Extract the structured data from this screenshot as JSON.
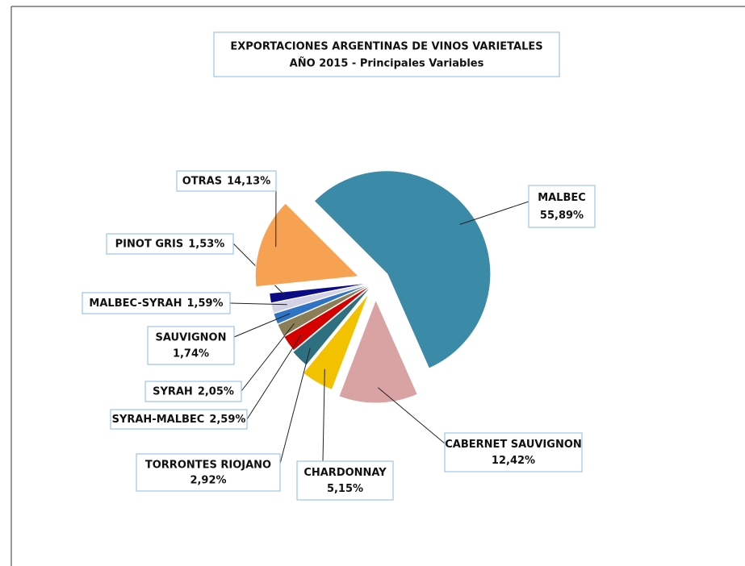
{
  "chart_data": {
    "type": "pie",
    "title": "EXPORTACIONES ARGENTINAS DE VINOS VARIETALES",
    "subtitle": "AÑO 2015 - Principales Variables",
    "categories": [
      "MALBEC",
      "CABERNET SAUVIGNON",
      "CHARDONNAY",
      "TORRONTES RIOJANO",
      "SYRAH-MALBEC",
      "SYRAH",
      "SAUVIGNON",
      "MALBEC-SYRAH",
      "PINOT GRIS",
      "OTRAS"
    ],
    "values": [
      55.89,
      12.42,
      5.15,
      2.92,
      2.59,
      2.05,
      1.74,
      1.59,
      1.53,
      14.13
    ],
    "value_labels": [
      "55,89%",
      "12,42%",
      "5,15%",
      "2,92%",
      "2,59%",
      "2,05%",
      "1,74%",
      "1,59%",
      "1,53%",
      "14,13%"
    ],
    "colors": [
      "#3a8aa8",
      "#d9a3a3",
      "#f2c200",
      "#2e6f80",
      "#d40000",
      "#8b7d55",
      "#2f74c4",
      "#d2d2e4",
      "#0b0b85",
      "#f6a252"
    ]
  }
}
